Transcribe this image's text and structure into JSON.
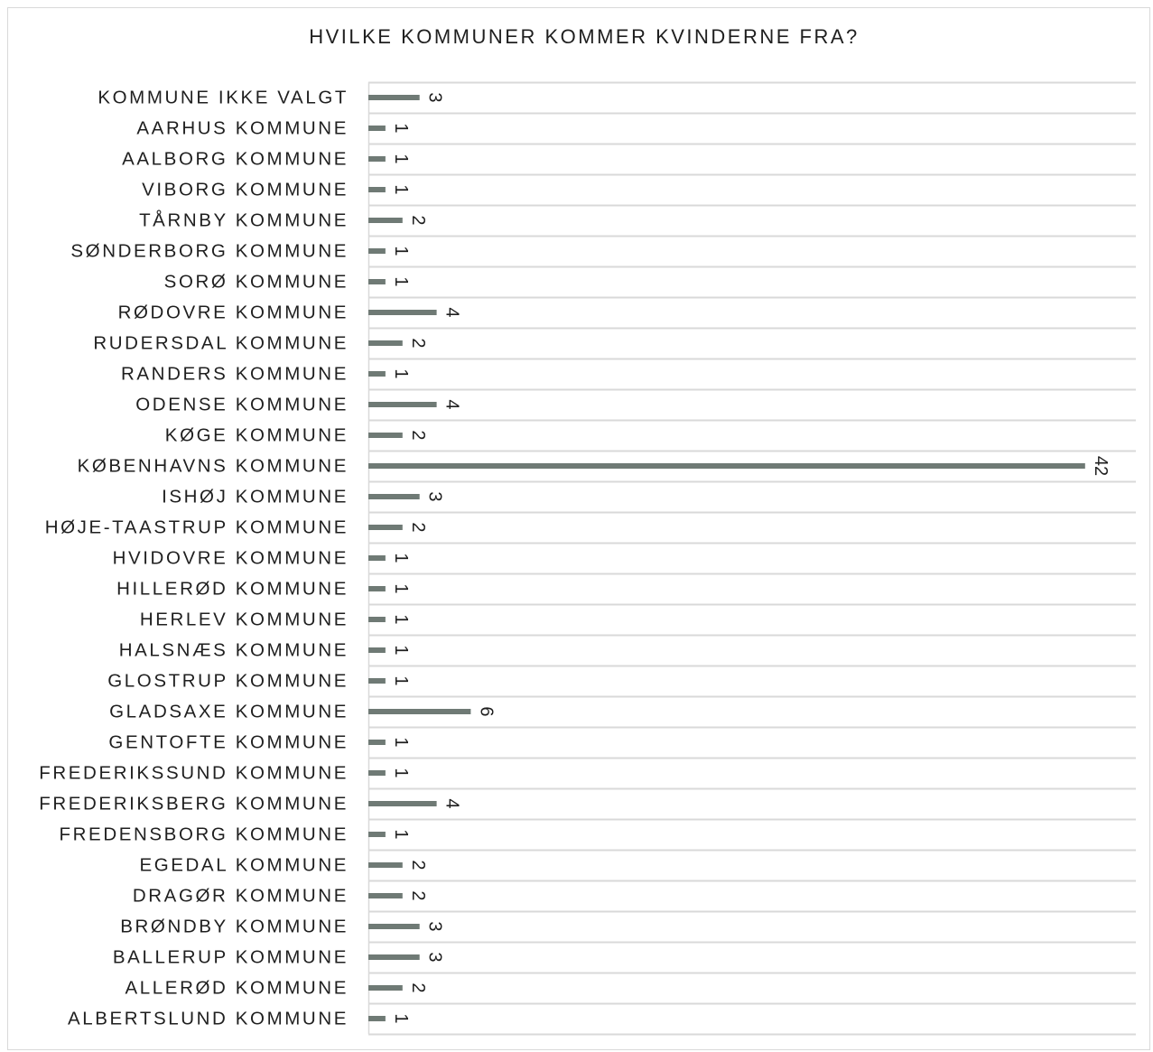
{
  "chart_data": {
    "type": "bar",
    "orientation": "horizontal",
    "title": "HVILKE KOMMUNER KOMMER KVINDERNE FRA?",
    "xlabel": "",
    "ylabel": "",
    "grid": true,
    "bar_color": "#6f7a75",
    "data_labels_rotated": true,
    "xlim": [
      0,
      45
    ],
    "categories": [
      "KOMMUNE IKKE VALGT",
      "AARHUS KOMMUNE",
      "AALBORG KOMMUNE",
      "VIBORG KOMMUNE",
      "TÅRNBY KOMMUNE",
      "SØNDERBORG KOMMUNE",
      "SORØ KOMMUNE",
      "RØDOVRE KOMMUNE",
      "RUDERSDAL KOMMUNE",
      "RANDERS KOMMUNE",
      "ODENSE KOMMUNE",
      "KØGE KOMMUNE",
      "KØBENHAVNS KOMMUNE",
      "ISHØJ KOMMUNE",
      "HØJE-TAASTRUP KOMMUNE",
      "HVIDOVRE KOMMUNE",
      "HILLERØD KOMMUNE",
      "HERLEV KOMMUNE",
      "HALSNÆS KOMMUNE",
      "GLOSTRUP KOMMUNE",
      "GLADSAXE KOMMUNE",
      "GENTOFTE KOMMUNE",
      "FREDERIKSSUND KOMMUNE",
      "FREDERIKSBERG KOMMUNE",
      "FREDENSBORG KOMMUNE",
      "EGEDAL KOMMUNE",
      "DRAGØR KOMMUNE",
      "BRØNDBY KOMMUNE",
      "BALLERUP KOMMUNE",
      "ALLERØD KOMMUNE",
      "ALBERTSLUND KOMMUNE"
    ],
    "values": [
      3,
      1,
      1,
      1,
      2,
      1,
      1,
      4,
      2,
      1,
      4,
      2,
      42,
      3,
      2,
      1,
      1,
      1,
      1,
      1,
      6,
      1,
      1,
      4,
      1,
      2,
      2,
      3,
      3,
      2,
      1
    ]
  }
}
